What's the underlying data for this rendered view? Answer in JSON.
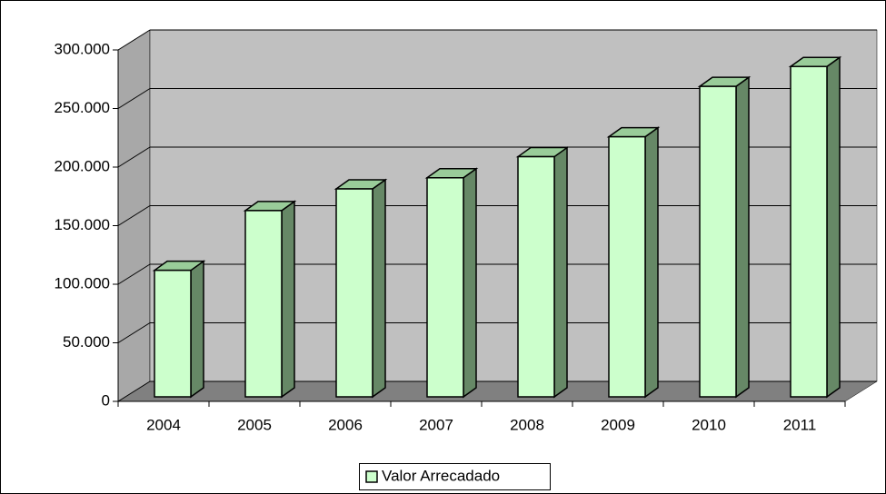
{
  "chart_data": {
    "type": "bar3d",
    "categories": [
      "2004",
      "2005",
      "2006",
      "2007",
      "2008",
      "2009",
      "2010",
      "2011"
    ],
    "series": [
      {
        "name": "Valor Arrecadado",
        "color": "#ccffcc",
        "values": [
          108000,
          159000,
          177500,
          187000,
          205000,
          222000,
          265000,
          282000
        ]
      }
    ],
    "ylim": [
      0,
      300000
    ],
    "yticks": [
      {
        "value": 0,
        "label": "0"
      },
      {
        "value": 50000,
        "label": "50.000"
      },
      {
        "value": 100000,
        "label": "100.000"
      },
      {
        "value": 150000,
        "label": "150.000"
      },
      {
        "value": 200000,
        "label": "200.000"
      },
      {
        "value": 250000,
        "label": "250.000"
      },
      {
        "value": 300000,
        "label": "300.000"
      }
    ],
    "grid": true,
    "legend": "bottom"
  }
}
